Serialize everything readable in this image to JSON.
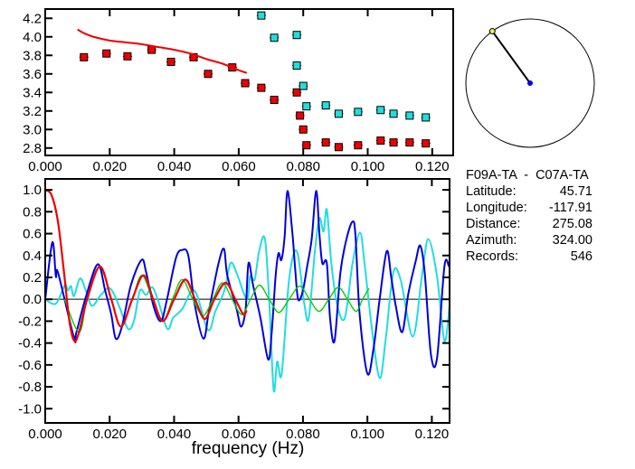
{
  "colors": {
    "red": "#ee0000",
    "cyan": "#22dddd",
    "blue": "#0000dd",
    "green": "#00cc00",
    "yellow": "#eeee44"
  },
  "station_info": {
    "title": "F09A-TA  -  C07A-TA",
    "rows": [
      {
        "label": "Latitude:",
        "value": "45.71"
      },
      {
        "label": "Longitude:",
        "value": "-117.91"
      },
      {
        "label": "Distance:",
        "value": "275.08"
      },
      {
        "label": "Azimuth:",
        "value": "324.00"
      },
      {
        "label": "Records:",
        "value": "546"
      }
    ]
  },
  "azimuth_deg": 324.0,
  "chart_data": [
    {
      "type": "scatter",
      "title": "",
      "xlabel": "",
      "ylabel": "",
      "xlim": [
        0,
        0.1265
      ],
      "ylim": [
        2.72,
        4.3
      ],
      "xticks": [
        "0.000",
        "0.020",
        "0.040",
        "0.060",
        "0.080",
        "0.100",
        "0.120"
      ],
      "yticks": [
        "2.8",
        "3.0",
        "3.2",
        "3.4",
        "3.6",
        "3.8",
        "4.0",
        "4.2"
      ],
      "series": [
        {
          "name": "red-points",
          "color": "red",
          "points": [
            [
              0.012,
              3.78
            ],
            [
              0.019,
              3.82
            ],
            [
              0.0255,
              3.79
            ],
            [
              0.033,
              3.86
            ],
            [
              0.039,
              3.73
            ],
            [
              0.046,
              3.78
            ],
            [
              0.0505,
              3.6
            ],
            [
              0.058,
              3.67
            ],
            [
              0.062,
              3.5
            ],
            [
              0.067,
              3.45
            ],
            [
              0.071,
              3.32
            ],
            [
              0.078,
              3.4
            ],
            [
              0.079,
              3.15
            ],
            [
              0.08,
              3.0
            ],
            [
              0.081,
              2.83
            ],
            [
              0.087,
              2.86
            ],
            [
              0.091,
              2.81
            ],
            [
              0.097,
              2.83
            ],
            [
              0.104,
              2.88
            ],
            [
              0.108,
              2.86
            ],
            [
              0.113,
              2.86
            ],
            [
              0.118,
              2.85
            ]
          ]
        },
        {
          "name": "cyan-points",
          "color": "cyan",
          "points": [
            [
              0.067,
              4.23
            ],
            [
              0.071,
              3.99
            ],
            [
              0.078,
              4.02
            ],
            [
              0.078,
              3.69
            ],
            [
              0.08,
              3.47
            ],
            [
              0.081,
              3.25
            ],
            [
              0.087,
              3.26
            ],
            [
              0.091,
              3.17
            ],
            [
              0.097,
              3.19
            ],
            [
              0.104,
              3.21
            ],
            [
              0.108,
              3.17
            ],
            [
              0.113,
              3.15
            ],
            [
              0.118,
              3.13
            ]
          ]
        },
        {
          "name": "red-curve",
          "color": "red",
          "line": true,
          "points": [
            [
              0.01,
              4.08
            ],
            [
              0.012,
              4.04
            ],
            [
              0.015,
              4.0
            ],
            [
              0.02,
              3.96
            ],
            [
              0.025,
              3.94
            ],
            [
              0.03,
              3.92
            ],
            [
              0.035,
              3.89
            ],
            [
              0.04,
              3.86
            ],
            [
              0.045,
              3.82
            ],
            [
              0.05,
              3.76
            ],
            [
              0.055,
              3.71
            ],
            [
              0.06,
              3.64
            ],
            [
              0.0625,
              3.61
            ]
          ]
        }
      ]
    },
    {
      "type": "line",
      "title": "",
      "xlabel": "frequency (Hz)",
      "ylabel": "",
      "xlim": [
        0,
        0.1255
      ],
      "ylim": [
        -1.13,
        1.1
      ],
      "xticks": [
        "0.000",
        "0.020",
        "0.040",
        "0.060",
        "0.080",
        "0.100",
        "0.120"
      ],
      "yticks": [
        "-1.0",
        "-0.8",
        "-0.6",
        "-0.4",
        "-0.2",
        "0.0",
        "0.2",
        "0.4",
        "0.6",
        "0.8",
        "1.0"
      ],
      "series": [
        {
          "name": "cyan",
          "color": "cyan",
          "width": 2,
          "points": [
            [
              0,
              0
            ],
            [
              0.0033,
              -0.04
            ],
            [
              0.0061,
              0.13
            ],
            [
              0.007,
              0.08
            ],
            [
              0.008,
              0.12
            ],
            [
              0.0089,
              0.03
            ],
            [
              0.0108,
              0.19
            ],
            [
              0.0126,
              0.08
            ],
            [
              0.0145,
              -0.06
            ],
            [
              0.0173,
              0.04
            ],
            [
              0.0201,
              0.1
            ],
            [
              0.0229,
              -0.06
            ],
            [
              0.0257,
              -0.27
            ],
            [
              0.0276,
              -0.19
            ],
            [
              0.0294,
              0.08
            ],
            [
              0.0313,
              0.04
            ],
            [
              0.0332,
              0.11
            ],
            [
              0.035,
              -0.01
            ],
            [
              0.0379,
              -0.27
            ],
            [
              0.0397,
              -0.17
            ],
            [
              0.0425,
              -0.09
            ],
            [
              0.0463,
              0.08
            ],
            [
              0.0505,
              -0.28
            ],
            [
              0.0528,
              -0.11
            ],
            [
              0.0556,
              0.08
            ],
            [
              0.0575,
              0.33
            ],
            [
              0.0594,
              0.24
            ],
            [
              0.0626,
              0.0
            ],
            [
              0.0636,
              0.21
            ],
            [
              0.065,
              0.18
            ],
            [
              0.0664,
              0.44
            ],
            [
              0.0682,
              0.55
            ],
            [
              0.0696,
              -0.06
            ],
            [
              0.0709,
              -0.83
            ],
            [
              0.072,
              -0.57
            ],
            [
              0.0734,
              -0.68
            ],
            [
              0.0757,
              0.18
            ],
            [
              0.0781,
              0.44
            ],
            [
              0.0804,
              -0.04
            ],
            [
              0.0818,
              -0.17
            ],
            [
              0.0837,
              0.44
            ],
            [
              0.0851,
              0.74
            ],
            [
              0.0864,
              0.62
            ],
            [
              0.0874,
              0.82
            ],
            [
              0.0888,
              0.33
            ],
            [
              0.0907,
              -0.06
            ],
            [
              0.093,
              -0.17
            ],
            [
              0.0954,
              0.33
            ],
            [
              0.0977,
              0.61
            ],
            [
              0.0991,
              0.33
            ],
            [
              0.1014,
              -0.27
            ],
            [
              0.1038,
              -0.72
            ],
            [
              0.1057,
              -0.36
            ],
            [
              0.108,
              0.24
            ],
            [
              0.1103,
              0.18
            ],
            [
              0.1141,
              -0.34
            ],
            [
              0.1169,
              0.21
            ],
            [
              0.1189,
              0.55
            ],
            [
              0.1216,
              0.21
            ],
            [
              0.1239,
              -0.38
            ],
            [
              0.1255,
              -0.06
            ]
          ]
        },
        {
          "name": "blue",
          "color": "blue",
          "width": 2,
          "points": [
            [
              0,
              0
            ],
            [
              0.0022,
              0.52
            ],
            [
              0.0033,
              0.21
            ],
            [
              0.004,
              0.24
            ],
            [
              0.0089,
              -0.35
            ],
            [
              0.0096,
              -0.31
            ],
            [
              0.0126,
              0.02
            ],
            [
              0.0163,
              0.32
            ],
            [
              0.0186,
              0.08
            ],
            [
              0.0205,
              -0.14
            ],
            [
              0.0219,
              -0.36
            ],
            [
              0.0238,
              -0.25
            ],
            [
              0.0266,
              0.13
            ],
            [
              0.0299,
              0.36
            ],
            [
              0.0313,
              0.25
            ],
            [
              0.0336,
              -0.06
            ],
            [
              0.0359,
              -0.2
            ],
            [
              0.0378,
              0.0
            ],
            [
              0.0406,
              0.38
            ],
            [
              0.0425,
              0.45
            ],
            [
              0.0444,
              0.4
            ],
            [
              0.0463,
              -0.03
            ],
            [
              0.0491,
              -0.36
            ],
            [
              0.0509,
              -0.09
            ],
            [
              0.0538,
              0.33
            ],
            [
              0.0555,
              0.46
            ],
            [
              0.0565,
              0.22
            ],
            [
              0.0594,
              -0.09
            ],
            [
              0.0608,
              -0.25
            ],
            [
              0.0622,
              -0.09
            ],
            [
              0.0631,
              0.33
            ],
            [
              0.0645,
              0.13
            ],
            [
              0.0668,
              -0.17
            ],
            [
              0.0692,
              -0.55
            ],
            [
              0.0703,
              -0.3
            ],
            [
              0.0715,
              0.21
            ],
            [
              0.0724,
              0.42
            ],
            [
              0.0733,
              0.36
            ],
            [
              0.0743,
              0.57
            ],
            [
              0.0752,
              0.99
            ],
            [
              0.0767,
              0.61
            ],
            [
              0.0776,
              0.27
            ],
            [
              0.0785,
              0.0
            ],
            [
              0.0799,
              0.07
            ],
            [
              0.0813,
              0.3
            ],
            [
              0.0827,
              0.55
            ],
            [
              0.0841,
              0.99
            ],
            [
              0.0851,
              0.6
            ],
            [
              0.086,
              0.33
            ],
            [
              0.0874,
              0.33
            ],
            [
              0.0884,
              -0.17
            ],
            [
              0.0898,
              -0.38
            ],
            [
              0.0916,
              0.24
            ],
            [
              0.0935,
              0.55
            ],
            [
              0.0954,
              0.71
            ],
            [
              0.0963,
              0.58
            ],
            [
              0.0976,
              -0.14
            ],
            [
              0.1,
              -0.68
            ],
            [
              0.1019,
              -0.45
            ],
            [
              0.1038,
              0.0
            ],
            [
              0.106,
              0.44
            ],
            [
              0.1074,
              0.2
            ],
            [
              0.1088,
              -0.06
            ],
            [
              0.1108,
              -0.3
            ],
            [
              0.1127,
              0.05
            ],
            [
              0.115,
              0.35
            ],
            [
              0.1164,
              0.49
            ],
            [
              0.1178,
              0.24
            ],
            [
              0.1197,
              -0.5
            ],
            [
              0.1216,
              -0.54
            ],
            [
              0.1239,
              0.3
            ],
            [
              0.1253,
              0.3
            ]
          ]
        },
        {
          "name": "green",
          "color": "green",
          "width": 1.3,
          "points": [
            [
              0.006,
              0.0
            ],
            [
              0.0105,
              -0.3
            ],
            [
              0.013,
              0.0
            ],
            [
              0.017,
              0.3
            ],
            [
              0.0205,
              0.0
            ],
            [
              0.0235,
              -0.25
            ],
            [
              0.027,
              0.0
            ],
            [
              0.03,
              0.22
            ],
            [
              0.0333,
              0.0
            ],
            [
              0.0365,
              -0.2
            ],
            [
              0.0395,
              0.0
            ],
            [
              0.0425,
              0.18
            ],
            [
              0.0458,
              0.0
            ],
            [
              0.049,
              -0.15
            ],
            [
              0.052,
              0.0
            ],
            [
              0.055,
              0.15
            ],
            [
              0.058,
              0.0
            ],
            [
              0.061,
              -0.14
            ],
            [
              0.0637,
              0.0
            ],
            [
              0.0665,
              0.13
            ],
            [
              0.0695,
              0.0
            ],
            [
              0.0725,
              -0.12
            ],
            [
              0.0757,
              0.0
            ],
            [
              0.079,
              0.12
            ],
            [
              0.082,
              0.0
            ],
            [
              0.085,
              -0.11
            ],
            [
              0.088,
              0.0
            ],
            [
              0.091,
              0.11
            ],
            [
              0.0938,
              0.0
            ],
            [
              0.0965,
              -0.11
            ],
            [
              0.0985,
              0.0
            ],
            [
              0.1005,
              0.1
            ]
          ]
        },
        {
          "name": "red",
          "color": "red",
          "width": 2.2,
          "points": [
            [
              0,
              1.0
            ],
            [
              0.002,
              0.95
            ],
            [
              0.004,
              0.7
            ],
            [
              0.006,
              0.2
            ],
            [
              0.0075,
              -0.2
            ],
            [
              0.009,
              -0.38
            ],
            [
              0.0105,
              -0.3
            ],
            [
              0.013,
              0.0
            ],
            [
              0.017,
              0.3
            ],
            [
              0.0205,
              0.0
            ],
            [
              0.0235,
              -0.25
            ],
            [
              0.027,
              0.0
            ],
            [
              0.0305,
              0.22
            ],
            [
              0.0335,
              0.0
            ],
            [
              0.0365,
              -0.2
            ],
            [
              0.04,
              0.0
            ],
            [
              0.0435,
              0.18
            ],
            [
              0.0465,
              0.0
            ],
            [
              0.0495,
              -0.18
            ],
            [
              0.0525,
              0.0
            ],
            [
              0.056,
              0.15
            ],
            [
              0.059,
              0.0
            ],
            [
              0.0615,
              -0.14
            ],
            [
              0.0625,
              -0.1
            ]
          ]
        }
      ]
    }
  ]
}
